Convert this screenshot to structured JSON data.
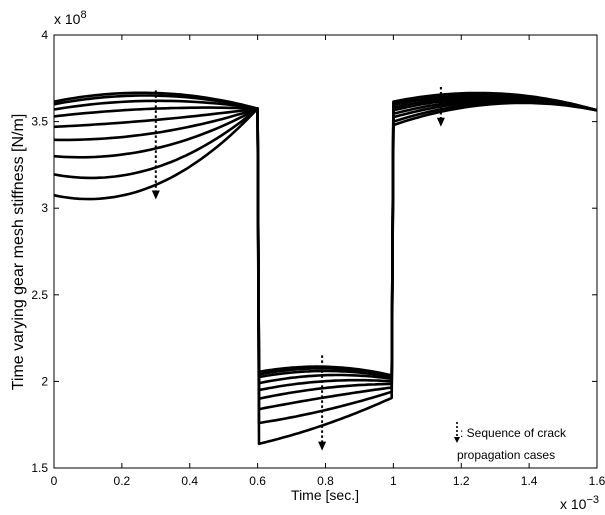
{
  "chart_data": {
    "type": "line",
    "title": "",
    "xlabel": "Time [sec.]",
    "ylabel": "Time varying gear mesh stiffness [N/m]",
    "x_exponent_label": "x 10",
    "x_exponent_power": "−3",
    "y_exponent_label": "x 10",
    "y_exponent_power": "8",
    "xlim": [
      0,
      1.6
    ],
    "ylim": [
      1.5,
      4.0
    ],
    "x_ticks": [
      0,
      0.2,
      0.4,
      0.6,
      0.8,
      1.0,
      1.2,
      1.4,
      1.6
    ],
    "x_tick_labels": [
      "0",
      "0.2",
      "0.4",
      "0.6",
      "0.8",
      "1",
      "1.2",
      "1.4",
      "1.6"
    ],
    "y_ticks": [
      1.5,
      2.0,
      2.5,
      3.0,
      3.5,
      4.0
    ],
    "y_tick_labels": [
      "1.5",
      "2",
      "2.5",
      "3",
      "3.5",
      "4"
    ],
    "grid": false,
    "legend": {
      "text_line1": ": Sequence of crack",
      "text_line2": "propagation cases",
      "placement": "bottom-right"
    },
    "transitions": {
      "drop_time": 0.6,
      "rise_time": 1.0
    },
    "series": [
      {
        "seg1": [
          3.615,
          3.665,
          3.575
        ],
        "seg2_start": 2.055,
        "seg2_peak": 2.085,
        "seg2_end": 2.035,
        "seg3": [
          3.615,
          3.665,
          3.565
        ]
      },
      {
        "seg1": [
          3.6,
          3.65,
          3.575
        ],
        "seg2_start": 2.04,
        "seg2_peak": 2.075,
        "seg2_end": 2.03,
        "seg3": [
          3.605,
          3.66,
          3.565
        ]
      },
      {
        "seg1": [
          3.57,
          3.62,
          3.575
        ],
        "seg2_start": 2.025,
        "seg2_peak": 2.06,
        "seg2_end": 2.025,
        "seg3": [
          3.595,
          3.655,
          3.565
        ]
      },
      {
        "seg1": [
          3.53,
          3.575,
          3.575
        ],
        "seg2_start": 1.99,
        "seg2_peak": 2.035,
        "seg2_end": 2.015,
        "seg3": [
          3.58,
          3.645,
          3.565
        ]
      },
      {
        "seg1": [
          3.47,
          3.51,
          3.575
        ],
        "seg2_start": 1.95,
        "seg2_peak": 2.0,
        "seg2_end": 2.0,
        "seg3": [
          3.565,
          3.635,
          3.565
        ]
      },
      {
        "seg1": [
          3.395,
          3.435,
          3.575
        ],
        "seg2_start": 1.9,
        "seg2_peak": 1.96,
        "seg2_end": 1.985,
        "seg3": [
          3.545,
          3.625,
          3.565
        ]
      },
      {
        "seg1": [
          3.3,
          3.345,
          3.575
        ],
        "seg2_start": 1.84,
        "seg2_peak": 1.905,
        "seg2_end": 1.965,
        "seg3": [
          3.525,
          3.615,
          3.565
        ]
      },
      {
        "seg1": [
          3.195,
          3.235,
          3.575
        ],
        "seg2_start": 1.76,
        "seg2_peak": 1.83,
        "seg2_end": 1.94,
        "seg3": [
          3.5,
          3.605,
          3.565
        ]
      },
      {
        "seg1": [
          3.075,
          3.135,
          3.575
        ],
        "seg2_start": 1.64,
        "seg2_peak": 1.745,
        "seg2_end": 1.905,
        "seg3": [
          3.48,
          3.595,
          3.565
        ]
      }
    ],
    "arrows": [
      {
        "x": 0.3,
        "y_from": 3.68,
        "y_to": 3.05
      },
      {
        "x": 0.79,
        "y_from": 2.15,
        "y_to": 1.6
      },
      {
        "x": 1.14,
        "y_from": 3.7,
        "y_to": 3.47
      }
    ]
  }
}
